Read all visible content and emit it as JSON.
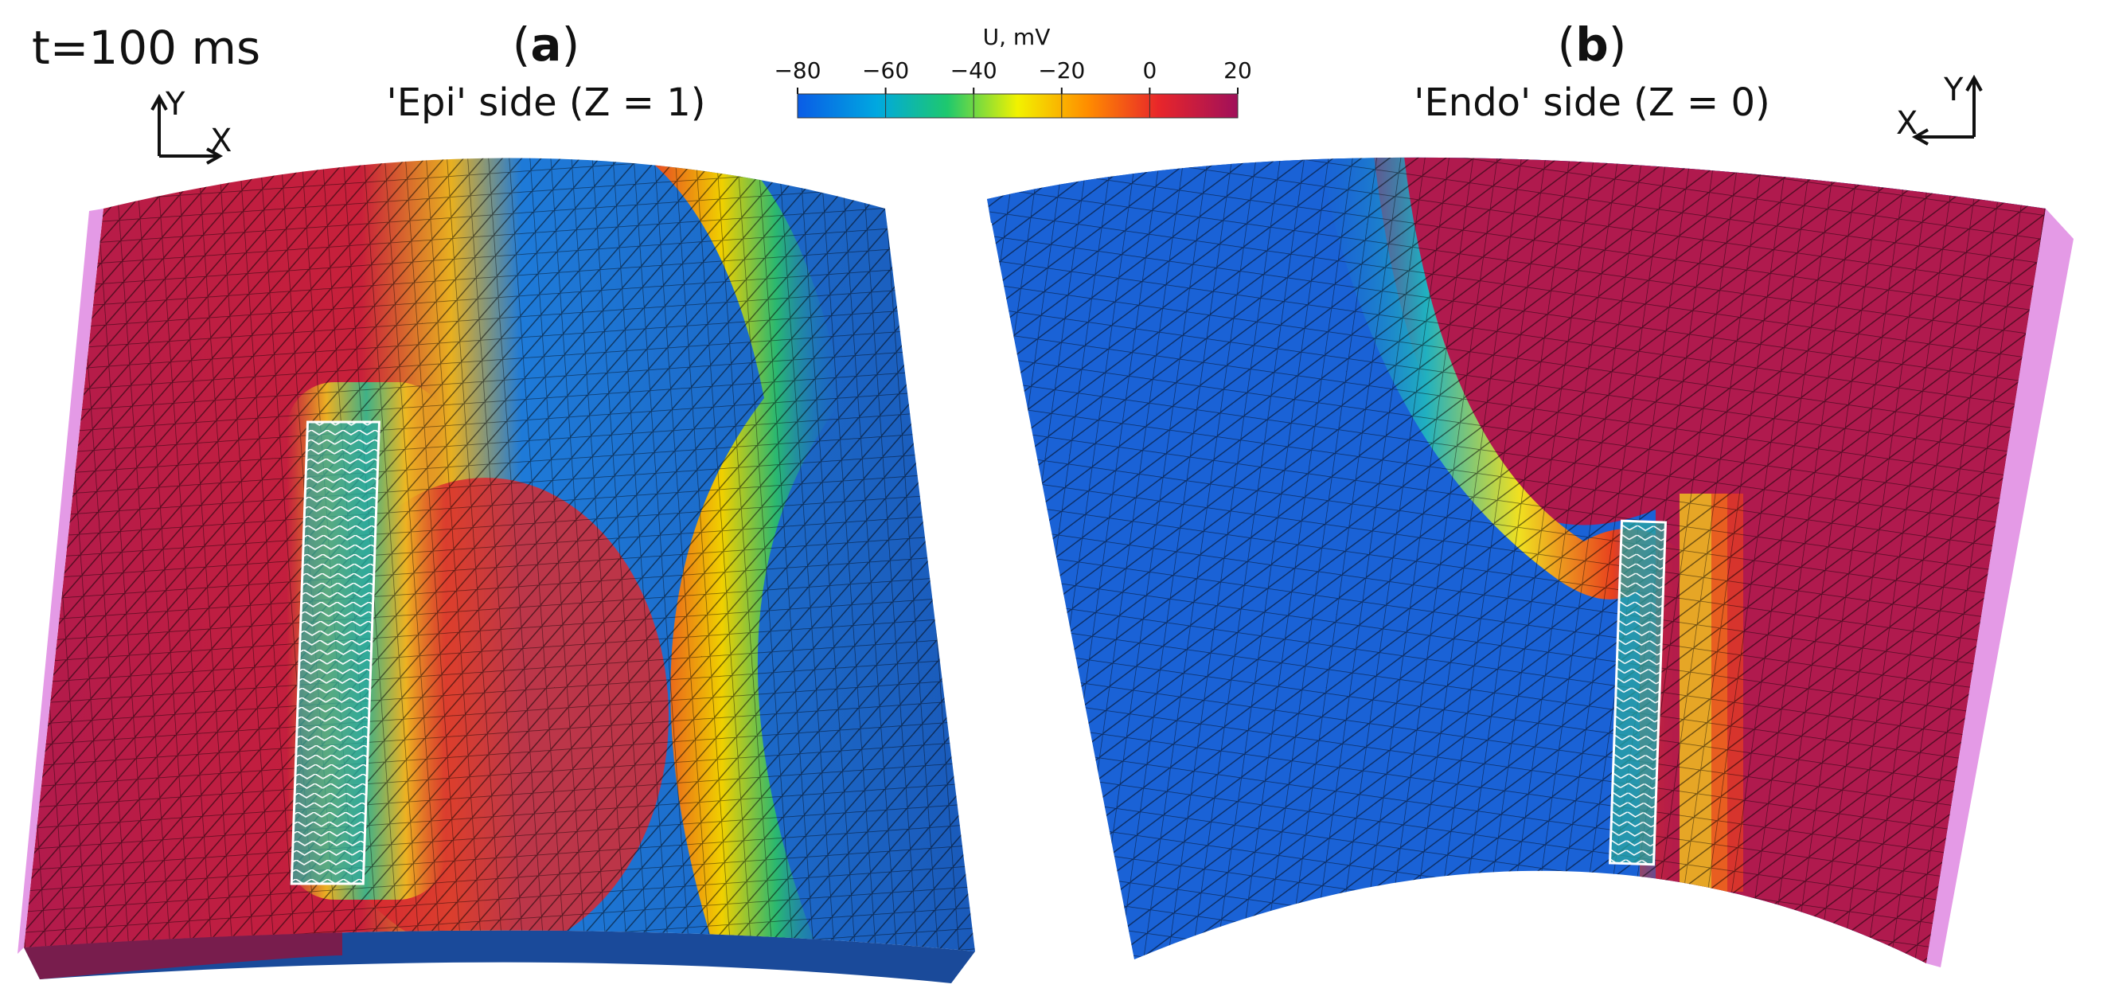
{
  "time_label": "t=100 ms",
  "colorbar": {
    "title": "U, mV",
    "ticks": [
      "−80",
      "−60",
      "−40",
      "−20",
      "0",
      "20"
    ],
    "range": [
      -80,
      20
    ],
    "stops": [
      "#0a5ce6",
      "#00a8e0",
      "#1ec86e",
      "#f2f200",
      "#ff8c00",
      "#e8262a",
      "#a0105a"
    ]
  },
  "panel_a": {
    "label_open": "(",
    "label_letter": "a",
    "label_close": ")",
    "subtitle": "'Epi' side (Z = 1)",
    "axis_x": "X",
    "axis_y": "Y"
  },
  "panel_b": {
    "label_open": "(",
    "label_letter": "b",
    "label_close": ")",
    "subtitle": "'Endo' side (Z = 0)",
    "axis_x": "X",
    "axis_y": "Y"
  },
  "colors": {
    "depolarized": "#b01a4e",
    "resting": "#1560d2",
    "mesh_line": "#000000",
    "boundary": "#e49ae6",
    "electrode_outline": "#ffffff"
  }
}
